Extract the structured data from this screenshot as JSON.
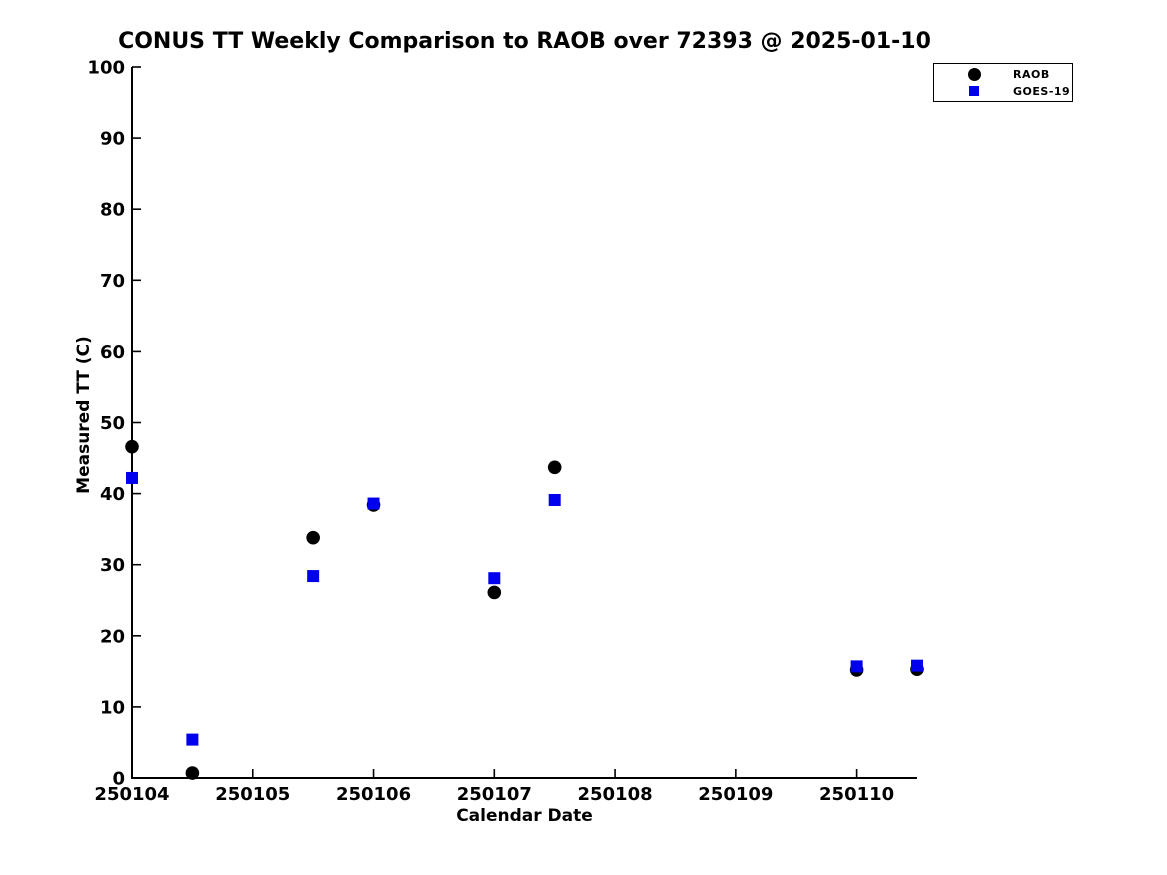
{
  "chart_data": {
    "type": "scatter",
    "title": "CONUS TT Weekly Comparison to RAOB over 72393 @ 2025-01-10",
    "xlabel": "Calendar Date",
    "ylabel": "Measured TT (C)",
    "xlim": [
      250104,
      250110.5
    ],
    "ylim": [
      0,
      100
    ],
    "xticks": [
      250104,
      250105,
      250106,
      250107,
      250108,
      250109,
      250110
    ],
    "yticks": [
      0,
      10,
      20,
      30,
      40,
      50,
      60,
      70,
      80,
      90,
      100
    ],
    "grid": false,
    "legend_position": "top-right",
    "background_color": "#ffffff",
    "axis_color": "#000000",
    "series": [
      {
        "name": "RAOB",
        "marker": "circle",
        "color": "#000000",
        "points": [
          {
            "x": 250104.0,
            "y": 46.6
          },
          {
            "x": 250104.5,
            "y": 0.7
          },
          {
            "x": 250105.5,
            "y": 33.8
          },
          {
            "x": 250106.0,
            "y": 38.4
          },
          {
            "x": 250107.0,
            "y": 26.1
          },
          {
            "x": 250107.5,
            "y": 43.7
          },
          {
            "x": 250110.0,
            "y": 15.2
          },
          {
            "x": 250110.5,
            "y": 15.3
          }
        ]
      },
      {
        "name": "GOES-19",
        "marker": "square",
        "color": "#0000ee",
        "points": [
          {
            "x": 250104.0,
            "y": 42.2
          },
          {
            "x": 250104.5,
            "y": 5.4
          },
          {
            "x": 250105.5,
            "y": 28.4
          },
          {
            "x": 250106.0,
            "y": 38.6
          },
          {
            "x": 250107.0,
            "y": 28.1
          },
          {
            "x": 250107.5,
            "y": 39.1
          },
          {
            "x": 250110.0,
            "y": 15.7
          },
          {
            "x": 250110.5,
            "y": 15.8
          }
        ]
      }
    ]
  }
}
